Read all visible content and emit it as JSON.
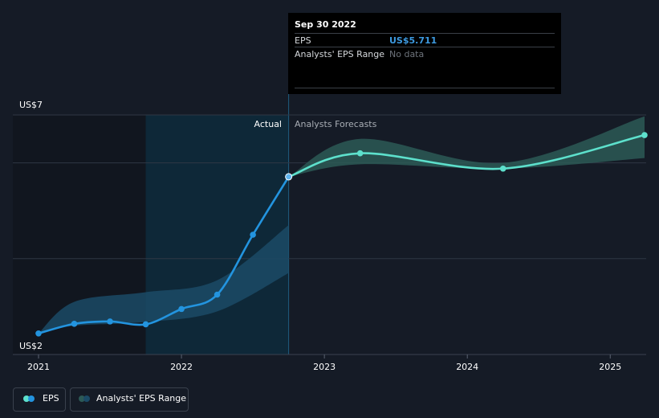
{
  "chart_data": {
    "type": "line",
    "y_axis": {
      "top_label": "US$7",
      "bottom_label": "US$2",
      "ylim": [
        2,
        7
      ]
    },
    "x_axis": {
      "ticks": [
        "2021",
        "2022",
        "2023",
        "2024",
        "2025"
      ],
      "xlim": [
        2021.0,
        2025.24
      ]
    },
    "regions": {
      "actual_label": "Actual",
      "forecast_label": "Analysts Forecasts"
    },
    "series": [
      {
        "name": "EPS",
        "kind": "actual",
        "color": "#2394df",
        "points": [
          [
            2021.0,
            2.44
          ],
          [
            2021.25,
            2.64
          ],
          [
            2021.5,
            2.69
          ],
          [
            2021.75,
            2.63
          ],
          [
            2022.0,
            2.95
          ],
          [
            2022.25,
            3.25
          ],
          [
            2022.5,
            4.5
          ],
          [
            2022.75,
            5.71
          ]
        ]
      },
      {
        "name": "EPS",
        "kind": "forecast",
        "color": "#5de0cc",
        "points": [
          [
            2022.75,
            5.71
          ],
          [
            2023.25,
            6.2
          ],
          [
            2024.25,
            5.88
          ],
          [
            2025.24,
            6.58
          ]
        ]
      }
    ],
    "ranges": [
      {
        "kind": "past",
        "color": "#1b4a66",
        "upper": [
          [
            2021.0,
            2.44
          ],
          [
            2021.25,
            3.1
          ],
          [
            2021.75,
            3.3
          ],
          [
            2022.25,
            3.55
          ],
          [
            2022.75,
            4.7
          ]
        ],
        "lower": [
          [
            2021.0,
            2.44
          ],
          [
            2021.25,
            2.6
          ],
          [
            2021.75,
            2.68
          ],
          [
            2022.25,
            2.9
          ],
          [
            2022.75,
            3.7
          ]
        ]
      },
      {
        "kind": "forecast",
        "color": "#2c5956",
        "upper": [
          [
            2022.75,
            5.71
          ],
          [
            2023.25,
            6.5
          ],
          [
            2024.25,
            6.0
          ],
          [
            2025.24,
            6.97
          ]
        ],
        "lower": [
          [
            2022.75,
            5.71
          ],
          [
            2023.25,
            5.97
          ],
          [
            2024.25,
            5.88
          ],
          [
            2025.24,
            6.1
          ]
        ]
      }
    ],
    "highlight_period": [
      2021.75,
      2022.75
    ],
    "grid": true,
    "legend": {
      "placement": "bottom-left",
      "items": [
        {
          "label": "EPS"
        },
        {
          "label": "Analysts' EPS Range"
        }
      ]
    }
  },
  "tooltip": {
    "date": "Sep 30 2022",
    "rows": [
      {
        "key": "EPS",
        "value": "US$5.711",
        "value_color": "#3d9ae0"
      },
      {
        "key": "Analysts' EPS Range",
        "value": "No data",
        "value_color": "#6d737b"
      }
    ]
  }
}
